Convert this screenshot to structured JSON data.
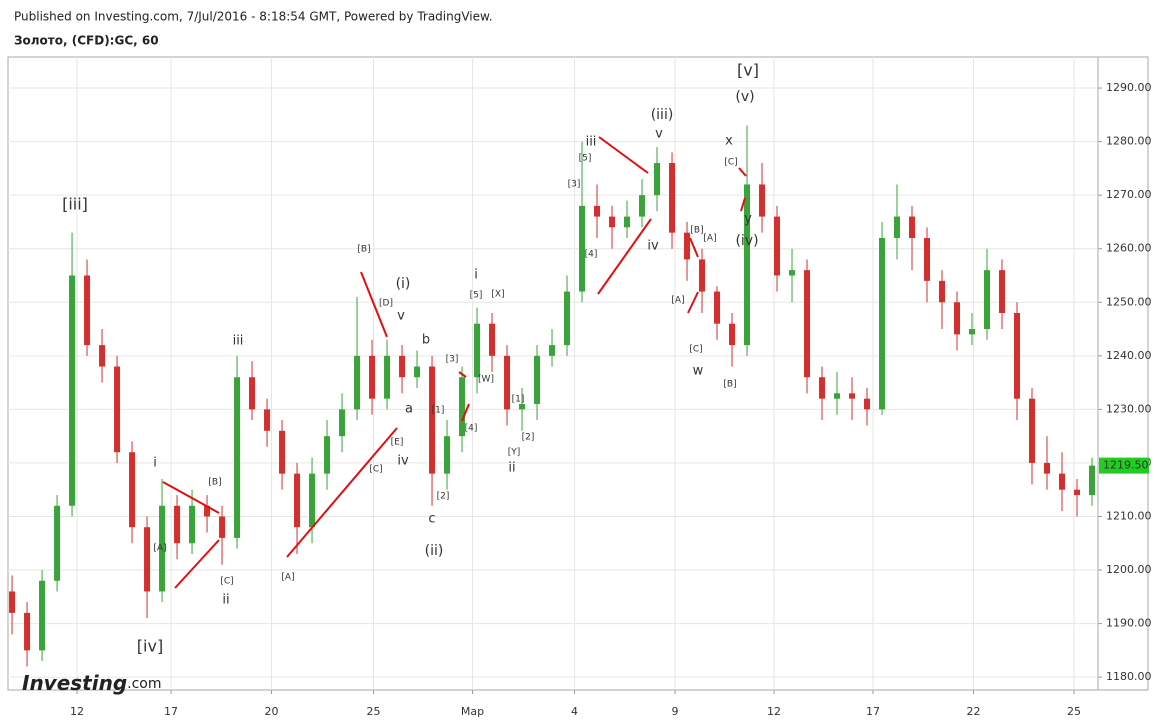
{
  "header": {
    "published": "Published on Investing.com, 7/Jul/2016 - 8:18:54 GMT, Powered by TradingView.",
    "symbol": "Золото, (CFD):GC, 60"
  },
  "logo": {
    "brand": "Investing",
    "suffix": ".com"
  },
  "chart_data": {
    "type": "candlestick",
    "x": [
      0,
      1,
      2,
      3,
      4,
      5,
      6,
      7,
      8,
      9,
      10,
      11,
      12,
      13,
      14,
      15,
      16,
      17,
      18,
      19,
      20,
      21,
      22,
      23,
      24,
      25,
      26,
      27,
      28,
      29,
      30,
      31,
      32,
      33,
      34,
      35,
      36,
      37,
      38,
      39,
      40,
      41,
      42,
      43,
      44,
      45,
      46,
      47,
      48,
      49,
      50,
      51,
      52,
      53,
      54,
      55,
      56,
      57,
      58,
      59,
      60,
      61,
      62,
      63,
      64,
      65,
      66,
      67,
      68,
      69,
      70,
      71,
      72
    ],
    "open": [
      1196,
      1192,
      1185,
      1198,
      1212,
      1255,
      1242,
      1238,
      1222,
      1208,
      1196,
      1212,
      1205,
      1212,
      1210,
      1206,
      1236,
      1230,
      1226,
      1218,
      1208,
      1218,
      1225,
      1230,
      1240,
      1232,
      1240,
      1236,
      1238,
      1218,
      1225,
      1236,
      1246,
      1240,
      1230,
      1231,
      1240,
      1242,
      1252,
      1268,
      1266,
      1264,
      1266,
      1270,
      1276,
      1263,
      1258,
      1252,
      1246,
      1242,
      1272,
      1266,
      1255,
      1256,
      1236,
      1232,
      1233,
      1232,
      1230,
      1262,
      1266,
      1262,
      1254,
      1250,
      1244,
      1245,
      1256,
      1248,
      1232,
      1220,
      1218,
      1215,
      1214
    ],
    "high": [
      1199,
      1194,
      1200,
      1214,
      1263,
      1258,
      1245,
      1240,
      1224,
      1210,
      1217,
      1214,
      1215,
      1214,
      1212,
      1240,
      1239,
      1232,
      1228,
      1220,
      1221,
      1228,
      1233,
      1251,
      1243,
      1243,
      1242,
      1241,
      1240,
      1228,
      1238,
      1249,
      1248,
      1242,
      1234,
      1242,
      1245,
      1255,
      1280,
      1272,
      1268,
      1269,
      1273,
      1279,
      1278,
      1265,
      1260,
      1253,
      1248,
      1283,
      1276,
      1268,
      1260,
      1258,
      1238,
      1237,
      1236,
      1234,
      1265,
      1272,
      1268,
      1264,
      1256,
      1252,
      1248,
      1260,
      1258,
      1250,
      1234,
      1225,
      1222,
      1217,
      1221
    ],
    "low": [
      1188,
      1182,
      1183,
      1196,
      1210,
      1240,
      1235,
      1220,
      1205,
      1191,
      1194,
      1202,
      1203,
      1207,
      1201,
      1204,
      1228,
      1223,
      1215,
      1203,
      1205,
      1215,
      1222,
      1228,
      1229,
      1230,
      1233,
      1234,
      1212,
      1215,
      1222,
      1233,
      1237,
      1227,
      1226,
      1228,
      1238,
      1240,
      1250,
      1262,
      1260,
      1262,
      1264,
      1267,
      1260,
      1254,
      1248,
      1243,
      1238,
      1240,
      1263,
      1252,
      1250,
      1233,
      1228,
      1229,
      1228,
      1227,
      1229,
      1258,
      1256,
      1250,
      1245,
      1241,
      1242,
      1243,
      1245,
      1228,
      1216,
      1215,
      1211,
      1210,
      1212
    ],
    "close": [
      1192,
      1185,
      1198,
      1212,
      1255,
      1242,
      1238,
      1222,
      1208,
      1196,
      1212,
      1205,
      1212,
      1210,
      1206,
      1236,
      1230,
      1226,
      1218,
      1208,
      1218,
      1225,
      1230,
      1240,
      1232,
      1240,
      1236,
      1238,
      1218,
      1225,
      1236,
      1246,
      1240,
      1230,
      1231,
      1240,
      1242,
      1252,
      1268,
      1266,
      1264,
      1266,
      1270,
      1276,
      1263,
      1258,
      1252,
      1246,
      1242,
      1272,
      1266,
      1255,
      1256,
      1236,
      1232,
      1233,
      1232,
      1230,
      1262,
      1266,
      1262,
      1254,
      1250,
      1244,
      1245,
      1256,
      1248,
      1232,
      1220,
      1218,
      1215,
      1214,
      1219.5
    ],
    "up_color": "#3aa33a",
    "down_color": "#d32f2f",
    "xlim": [
      -0.27,
      72.4
    ],
    "xticks": [
      {
        "value": 4.33,
        "label": "12"
      },
      {
        "value": 10.6,
        "label": "17"
      },
      {
        "value": 17.3,
        "label": "20"
      },
      {
        "value": 24.1,
        "label": "25"
      },
      {
        "value": 30.7,
        "label": "Мар"
      },
      {
        "value": 37.5,
        "label": "4"
      },
      {
        "value": 44.2,
        "label": "9"
      },
      {
        "value": 50.8,
        "label": "12"
      },
      {
        "value": 57.4,
        "label": "17"
      },
      {
        "value": 64.1,
        "label": "22"
      },
      {
        "value": 70.8,
        "label": "25"
      }
    ],
    "ylim": [
      1177.6,
      1295.8
    ],
    "yticks": [
      {
        "value": 1180,
        "label": "1180.00"
      },
      {
        "value": 1190,
        "label": "1190.00"
      },
      {
        "value": 1200,
        "label": "1200.00"
      },
      {
        "value": 1210,
        "label": "1210.00"
      },
      {
        "value": 1220,
        "label": "1220.00"
      },
      {
        "value": 1230,
        "label": "1230.00"
      },
      {
        "value": 1240,
        "label": "1240.00"
      },
      {
        "value": 1250,
        "label": "1250.00"
      },
      {
        "value": 1260,
        "label": "1260.00"
      },
      {
        "value": 1270,
        "label": "1270.00"
      },
      {
        "value": 1280,
        "label": "1280.00"
      },
      {
        "value": 1290,
        "label": "1290.00"
      }
    ],
    "last_price": {
      "value": 1219.5,
      "label": "1219.50"
    },
    "grid": true,
    "annotations": [
      "[iii]",
      "[iv]",
      "i",
      "[A]",
      "[B]",
      "[C]",
      "ii",
      "iii",
      "[A]",
      "[B]",
      "[D]",
      "(i)",
      "v",
      "b",
      "a",
      "[E]",
      "[C]",
      "iv",
      "[1]",
      "[2]",
      "c",
      "(ii)",
      "[3]",
      "[4]",
      "i",
      "[5]",
      "[X]",
      "[W]",
      "[1]",
      "[2]",
      "[Y]",
      "ii",
      "iii",
      "[5]",
      "[3]",
      "[4]",
      "iv",
      "(iii)",
      "v",
      "[B]",
      "[A]",
      "[A]",
      "[C]",
      "w",
      "[B]",
      "[v]",
      "(v)",
      "x",
      "[C]",
      "y",
      "(iv)"
    ]
  }
}
